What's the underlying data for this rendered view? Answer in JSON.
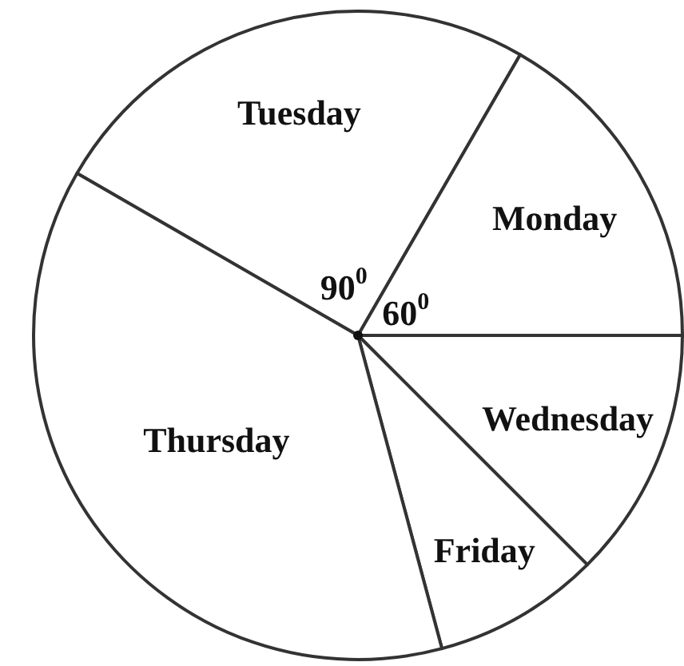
{
  "chart_data": {
    "type": "pie",
    "categories": [
      "Tuesday",
      "Monday",
      "Wednesday",
      "Friday",
      "Thursday"
    ],
    "values": [
      25,
      16.67,
      12.5,
      8.33,
      37.5
    ],
    "colors": [
      "#ffffff",
      "#ffffff",
      "#ffffff",
      "#ffffff",
      "#ffffff"
    ],
    "annotations": [
      "90$^{0}$",
      "60$^{0}$"
    ]
  }
}
